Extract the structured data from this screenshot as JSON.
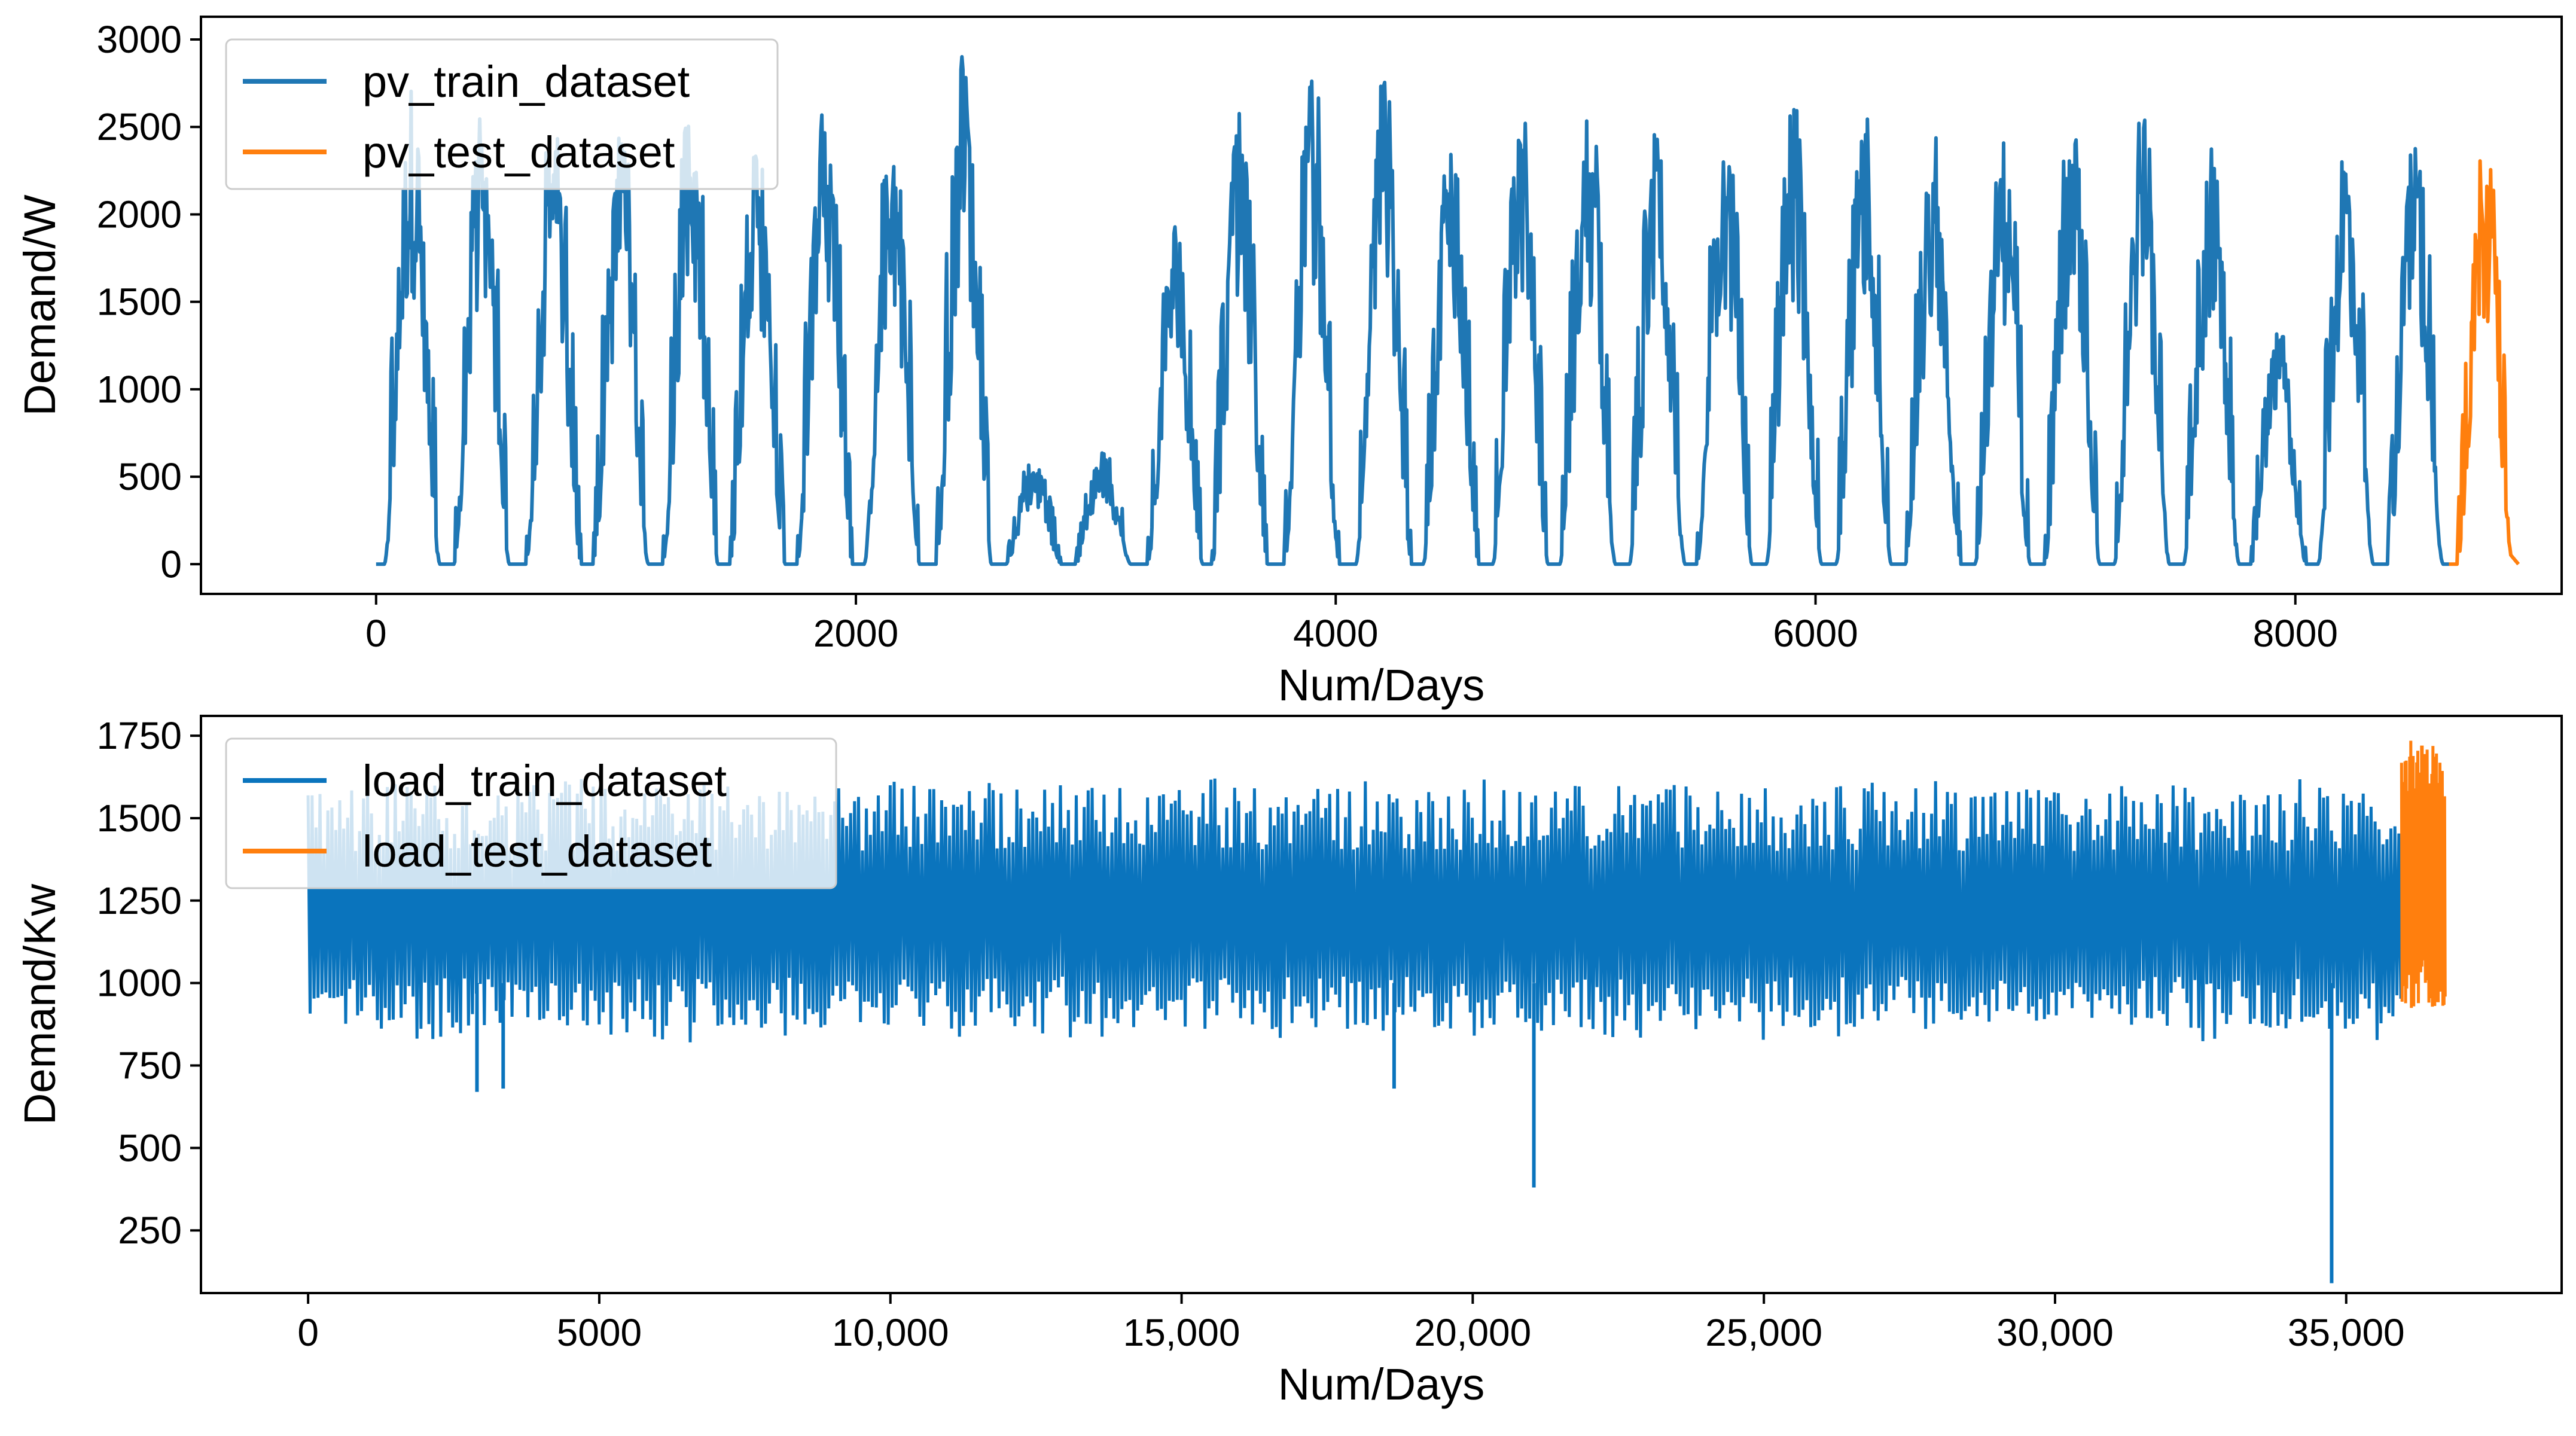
{
  "colors": {
    "train": "#1f77b4",
    "test": "#ff7f0e",
    "train_dense": "#0a74bd",
    "axes": "#000000",
    "background": "#ffffff"
  },
  "chart_data": [
    {
      "type": "line",
      "title": "",
      "xlabel": "Num/Days",
      "ylabel": "Demand/W",
      "xlim": [
        -730,
        9110
      ],
      "ylim": [
        -170,
        3130
      ],
      "xticks": [
        0,
        2000,
        4000,
        6000,
        8000
      ],
      "xtick_labels": [
        "0",
        "2000",
        "4000",
        "6000",
        "8000"
      ],
      "yticks": [
        0,
        500,
        1000,
        1500,
        2000,
        2500,
        3000
      ],
      "ytick_labels": [
        "0",
        "500",
        "1000",
        "1500",
        "2000",
        "2500",
        "3000"
      ],
      "grid": false,
      "legend_position": "upper-left",
      "series": [
        {
          "name": "pv_train_dataset",
          "color_key": "train",
          "x_range": [
            0,
            8640
          ],
          "description_peaks_days": [
            150,
            440,
            740,
            1020,
            1310,
            1590,
            1870,
            2150,
            2450,
            2740,
            3030,
            3330,
            3600,
            3900,
            4200,
            4480,
            4770,
            5050,
            5340,
            5620,
            5910,
            6200,
            6490,
            6780,
            7070,
            7360,
            7650,
            7930,
            8210,
            8500
          ],
          "peak_values": [
            2780,
            2600,
            2550,
            2500,
            2650,
            2450,
            2750,
            2620,
            2970,
            610,
            640,
            2020,
            2580,
            2840,
            2920,
            2640,
            2740,
            2650,
            2540,
            2550,
            2710,
            2600,
            2480,
            2490,
            2580,
            2640,
            2420,
            1400,
            2540,
            2560
          ],
          "baseline": 0
        },
        {
          "name": "pv_test_dataset",
          "color_key": "test",
          "x_range": [
            8640,
            8930
          ],
          "peak_day": 8790,
          "peak_value": 2560,
          "baseline": 0
        }
      ]
    },
    {
      "type": "line",
      "title": "",
      "xlabel": "Num/Days",
      "ylabel": "Demand/Kw",
      "xlim": [
        -1840,
        38700
      ],
      "ylim": [
        60,
        1810
      ],
      "xticks": [
        0,
        5000,
        10000,
        15000,
        20000,
        25000,
        30000,
        35000
      ],
      "xtick_labels": [
        "0",
        "5000",
        "10,000",
        "15,000",
        "20,000",
        "25,000",
        "30,000",
        "35,000"
      ],
      "yticks": [
        250,
        500,
        750,
        1000,
        1250,
        1500,
        1750
      ],
      "ytick_labels": [
        "250",
        "500",
        "750",
        "1000",
        "1250",
        "1500",
        "1750"
      ],
      "grid": false,
      "legend_position": "upper-left",
      "series": [
        {
          "name": "load_train_dataset",
          "color_key": "train_dense",
          "x_range": [
            0,
            35950
          ],
          "band_low": 900,
          "band_high": 1520,
          "typical_max": 1600,
          "typical_min": 820,
          "notable_dips": [
            {
              "x": 21050,
              "y": 380
            },
            {
              "x": 34750,
              "y": 90
            },
            {
              "x": 18650,
              "y": 680
            },
            {
              "x": 2900,
              "y": 670
            },
            {
              "x": 3350,
              "y": 680
            }
          ]
        },
        {
          "name": "load_test_dataset",
          "color_key": "test",
          "x_range": [
            35950,
            36700
          ],
          "band_low": 960,
          "band_high": 1620,
          "peak": {
            "x": 36300,
            "y": 1720
          }
        }
      ]
    }
  ]
}
